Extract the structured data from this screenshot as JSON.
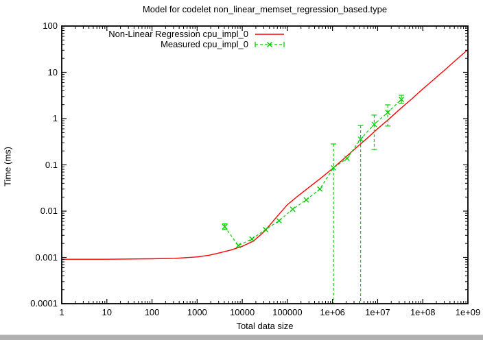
{
  "window": {
    "bottom_bar_color": "#b1b1b1"
  },
  "chart_data": {
    "type": "line",
    "title": "Model for codelet non_linear_memset_regression_based.type",
    "xlabel": "Total data size",
    "ylabel": "Time (ms)",
    "x_scale": "log",
    "y_scale": "log",
    "xlim": [
      1,
      1000000000
    ],
    "ylim": [
      0.0001,
      100
    ],
    "grid": false,
    "legend_position": "top-center-inside",
    "x_ticks": [
      {
        "label": "1",
        "value": 1
      },
      {
        "label": "10",
        "value": 10
      },
      {
        "label": "100",
        "value": 100
      },
      {
        "label": "1000",
        "value": 1000
      },
      {
        "label": "10000",
        "value": 10000
      },
      {
        "label": "100000",
        "value": 100000
      },
      {
        "label": "1e+06",
        "value": 1000000
      },
      {
        "label": "1e+07",
        "value": 10000000
      },
      {
        "label": "1e+08",
        "value": 100000000
      },
      {
        "label": "1e+09",
        "value": 1000000000
      }
    ],
    "y_ticks": [
      {
        "label": "0.0001",
        "value": 0.0001
      },
      {
        "label": "0.001",
        "value": 0.001
      },
      {
        "label": "0.01",
        "value": 0.01
      },
      {
        "label": "0.1",
        "value": 0.1
      },
      {
        "label": "1",
        "value": 1
      },
      {
        "label": "10",
        "value": 10
      },
      {
        "label": "100",
        "value": 100
      }
    ],
    "series": [
      {
        "name": "Non-Linear Regression cpu_impl_0",
        "type": "line",
        "style": "solid",
        "color": "#ff0000",
        "model_points_log10": [
          [
            0,
            -3.04
          ],
          [
            1,
            -3.04
          ],
          [
            2,
            -3.03
          ],
          [
            2.5,
            -3.02
          ],
          [
            2.75,
            -3.005
          ],
          [
            3,
            -2.99
          ],
          [
            3.25,
            -2.955
          ],
          [
            3.5,
            -2.9
          ],
          [
            3.75,
            -2.84
          ],
          [
            4,
            -2.76
          ],
          [
            4.25,
            -2.645
          ],
          [
            4.5,
            -2.43
          ],
          [
            4.75,
            -2.14
          ],
          [
            5,
            -1.86
          ],
          [
            5.25,
            -1.66
          ],
          [
            5.5,
            -1.47
          ],
          [
            5.75,
            -1.28
          ],
          [
            6,
            -1.08
          ],
          [
            6.25,
            -0.87
          ],
          [
            6.5,
            -0.65
          ],
          [
            6.75,
            -0.44
          ],
          [
            7,
            -0.22
          ],
          [
            7.25,
            -0.01
          ],
          [
            7.5,
            0.21
          ],
          [
            7.75,
            0.42
          ],
          [
            8,
            0.64
          ],
          [
            8.25,
            0.85
          ],
          [
            8.5,
            1.06
          ],
          [
            8.75,
            1.28
          ],
          [
            9,
            1.49
          ]
        ]
      },
      {
        "name": "Measured cpu_impl_0",
        "type": "errorbars",
        "style": "dashed",
        "color": "#00d000",
        "points": [
          {
            "x": 4096,
            "y": 0.0046,
            "ylow": 0.004,
            "yhigh": 0.0053,
            "ylow_clipped": false
          },
          {
            "x": 8192,
            "y": 0.0018,
            "ylow": null,
            "yhigh": null,
            "ylow_clipped": false
          },
          {
            "x": 16384,
            "y": 0.0025,
            "ylow": null,
            "yhigh": null,
            "ylow_clipped": false
          },
          {
            "x": 32768,
            "y": 0.004,
            "ylow": null,
            "yhigh": null,
            "ylow_clipped": false
          },
          {
            "x": 65536,
            "y": 0.0062,
            "ylow": null,
            "yhigh": null,
            "ylow_clipped": false
          },
          {
            "x": 131072,
            "y": 0.011,
            "ylow": null,
            "yhigh": null,
            "ylow_clipped": false
          },
          {
            "x": 262144,
            "y": 0.0175,
            "ylow": null,
            "yhigh": null,
            "ylow_clipped": false
          },
          {
            "x": 524288,
            "y": 0.03,
            "ylow": null,
            "yhigh": null,
            "ylow_clipped": false
          },
          {
            "x": 1048576,
            "y": 0.086,
            "ylow": 0.0001,
            "yhigh": 0.283,
            "ylow_clipped": true
          },
          {
            "x": 2097152,
            "y": 0.138,
            "ylow": null,
            "yhigh": null,
            "ylow_clipped": false
          },
          {
            "x": 4194304,
            "y": 0.36,
            "ylow": 0.0001,
            "yhigh": 0.71,
            "ylow_clipped": true
          },
          {
            "x": 8388608,
            "y": 0.75,
            "ylow": 0.215,
            "yhigh": 1.19,
            "ylow_clipped": false
          },
          {
            "x": 16777216,
            "y": 1.36,
            "ylow": 0.69,
            "yhigh": 1.98,
            "ylow_clipped": false
          },
          {
            "x": 33554432,
            "y": 2.6,
            "ylow": 2.12,
            "yhigh": 3.19,
            "ylow_clipped": false
          }
        ]
      }
    ]
  }
}
